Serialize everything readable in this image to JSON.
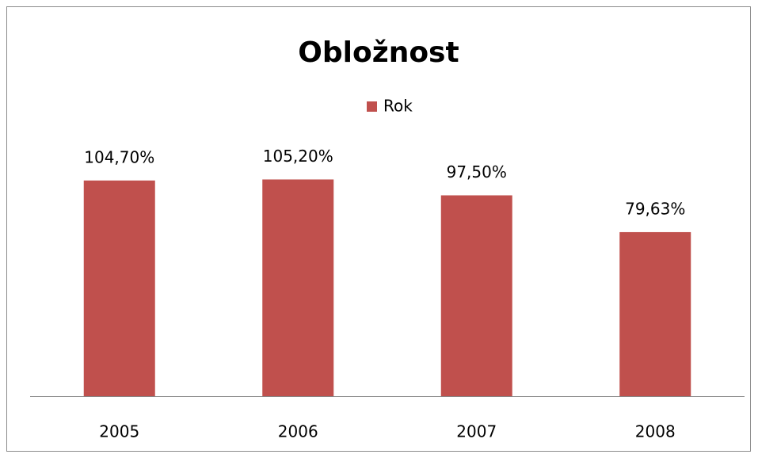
{
  "chart_data": {
    "type": "bar",
    "title": "Obložnost",
    "categories": [
      "2005",
      "2006",
      "2007",
      "2008"
    ],
    "series": [
      {
        "name": "Rok",
        "color": "#c0504d",
        "values": [
          104.7,
          105.2,
          97.5,
          79.63
        ],
        "value_labels": [
          "104,70%",
          "105,20%",
          "97,50%",
          "79,63%"
        ]
      }
    ],
    "ylim": [
      0,
      120
    ]
  }
}
